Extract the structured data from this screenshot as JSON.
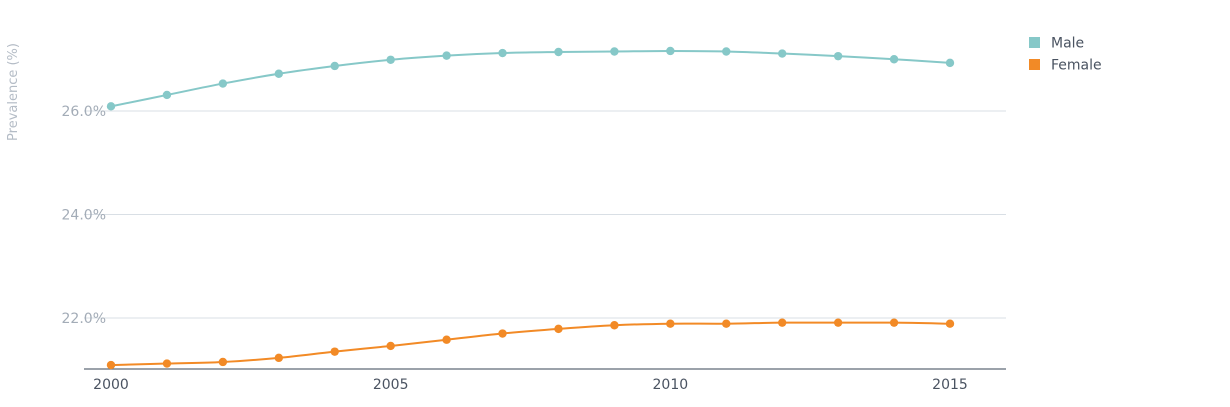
{
  "chart_data": {
    "type": "line",
    "title": "",
    "xlabel": "",
    "ylabel": "Prevalence (%)",
    "x": [
      2000,
      2001,
      2002,
      2003,
      2004,
      2005,
      2006,
      2007,
      2008,
      2009,
      2010,
      2011,
      2012,
      2013,
      2014,
      2015
    ],
    "xlim": [
      2000,
      2016
    ],
    "ylim": [
      21.0,
      27.6
    ],
    "x_ticks": [
      {
        "value": 2000,
        "label": "2000"
      },
      {
        "value": 2005,
        "label": "2005"
      },
      {
        "value": 2010,
        "label": "2010"
      },
      {
        "value": 2015,
        "label": "2015"
      }
    ],
    "y_ticks": [
      {
        "value": 22.0,
        "label": "22.0%"
      },
      {
        "value": 24.0,
        "label": "24.0%"
      },
      {
        "value": 26.0,
        "label": "26.0%"
      }
    ],
    "grid": true,
    "legend_position": "top-right",
    "series": [
      {
        "name": "Male",
        "color": "#86c8c8",
        "values": [
          26.09,
          26.31,
          26.53,
          26.72,
          26.87,
          26.99,
          27.07,
          27.12,
          27.14,
          27.15,
          27.16,
          27.15,
          27.11,
          27.06,
          27.0,
          26.93
        ]
      },
      {
        "name": "Female",
        "color": "#f28a26",
        "values": [
          21.09,
          21.12,
          21.15,
          21.23,
          21.35,
          21.46,
          21.58,
          21.7,
          21.79,
          21.86,
          21.89,
          21.89,
          21.91,
          21.91,
          21.91,
          21.89
        ]
      }
    ]
  }
}
